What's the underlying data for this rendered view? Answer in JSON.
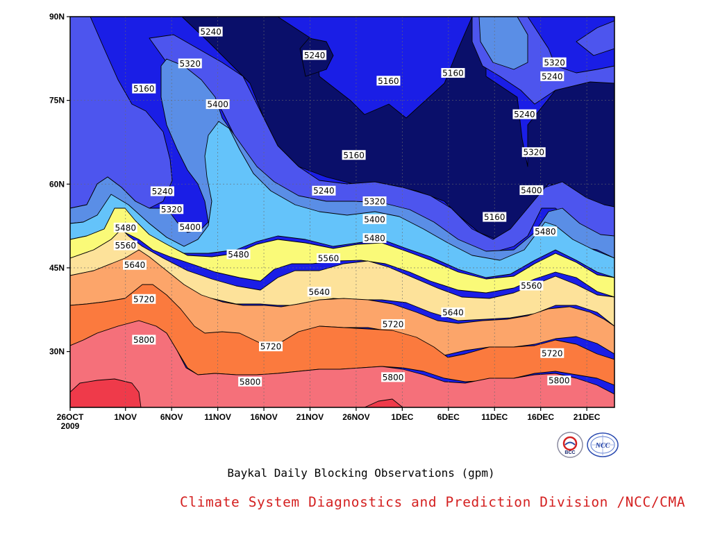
{
  "chart_data": {
    "type": "heatmap",
    "subtype": "filled-contour",
    "title": "",
    "xlabel": "",
    "ylabel": "",
    "caption": "Baykal Daily Blocking Observations (gpm)",
    "units": "gpm",
    "x_ticks": [
      "26OCT",
      "1NOV",
      "6NOV",
      "11NOV",
      "16NOV",
      "21NOV",
      "26NOV",
      "1DEC",
      "6DEC",
      "11DEC",
      "16DEC",
      "21DEC"
    ],
    "x_year_label": "2009",
    "y_ticks": [
      "30N",
      "45N",
      "60N",
      "75N",
      "90N"
    ],
    "y_range_deg": [
      20,
      90
    ],
    "x_range": [
      "26OCT2009",
      "24DEC2009"
    ],
    "contour_levels": [
      5160,
      5240,
      5320,
      5400,
      5480,
      5560,
      5640,
      5720,
      5800,
      5880
    ],
    "colors": {
      "below_5160": "#0a0f6a",
      "5160_5240": "#1a1ee6",
      "5240_5320": "#4d55ee",
      "5320_5400": "#5a8ee6",
      "5400_5480": "#64c3fa",
      "5480_5560": "#fafa78",
      "5560_5640": "#fde29a",
      "5640_5720": "#fca56a",
      "5720_5800": "#fb7a3e",
      "5800_5880": "#f5707a",
      "above_5880": "#ef3a4a"
    },
    "contour_lines": [
      {
        "level": 5800,
        "points": [
          [
            0,
            30.5
          ],
          [
            5,
            35
          ],
          [
            10,
            36.5
          ],
          [
            15,
            35
          ],
          [
            20,
            29.5
          ],
          [
            25,
            28
          ],
          [
            30,
            27
          ],
          [
            40,
            26
          ],
          [
            50,
            26
          ],
          [
            60,
            27
          ],
          [
            70,
            27.5
          ],
          [
            80,
            26
          ],
          [
            85,
            24.5
          ],
          [
            90,
            25.5
          ],
          [
            100,
            24
          ],
          [
            108,
            23
          ],
          [
            117,
            22
          ]
        ]
      },
      {
        "level": 5720,
        "points": [
          [
            0,
            38.5
          ],
          [
            5,
            39
          ],
          [
            10,
            42
          ],
          [
            15,
            41
          ],
          [
            20,
            36.5
          ],
          [
            25,
            33
          ],
          [
            30,
            32
          ],
          [
            35,
            31.5
          ],
          [
            40,
            30
          ],
          [
            45,
            32
          ],
          [
            50,
            34
          ],
          [
            55,
            33
          ],
          [
            60,
            34
          ],
          [
            65,
            34
          ],
          [
            70,
            31
          ],
          [
            75,
            30
          ],
          [
            80,
            29.5
          ],
          [
            85,
            31
          ],
          [
            90,
            30
          ],
          [
            95,
            30.5
          ],
          [
            100,
            29.5
          ],
          [
            105,
            30.5
          ],
          [
            110,
            29.5
          ],
          [
            117,
            26.5
          ]
        ]
      },
      {
        "level": 5640,
        "points": [
          [
            0,
            43.5
          ],
          [
            5,
            44
          ],
          [
            10,
            48.5
          ],
          [
            15,
            45
          ],
          [
            20,
            41
          ],
          [
            25,
            40
          ],
          [
            30,
            38.5
          ],
          [
            40,
            37.5
          ],
          [
            45,
            39
          ],
          [
            50,
            38.5
          ],
          [
            55,
            40.5
          ],
          [
            60,
            40.5
          ],
          [
            65,
            39.5
          ],
          [
            70,
            39.5
          ],
          [
            75,
            37.5
          ],
          [
            80,
            36.5
          ],
          [
            85,
            36
          ],
          [
            90,
            36.5
          ],
          [
            95,
            37
          ],
          [
            100,
            38
          ],
          [
            105,
            37.5
          ],
          [
            110,
            36.5
          ],
          [
            117,
            34.5
          ]
        ]
      },
      {
        "level": 5560,
        "points": [
          [
            0,
            47
          ],
          [
            5,
            48
          ],
          [
            10,
            53
          ],
          [
            15,
            49
          ],
          [
            20,
            46
          ],
          [
            25,
            44
          ],
          [
            30,
            43
          ],
          [
            35,
            41
          ],
          [
            40,
            44
          ],
          [
            45,
            45
          ],
          [
            50,
            44.5
          ],
          [
            55,
            46
          ],
          [
            60,
            47
          ],
          [
            65,
            45.5
          ],
          [
            70,
            44
          ],
          [
            75,
            42
          ],
          [
            80,
            40.5
          ],
          [
            85,
            40.5
          ],
          [
            90,
            40.5
          ],
          [
            95,
            42
          ],
          [
            100,
            43
          ],
          [
            105,
            44.5
          ],
          [
            110,
            41
          ],
          [
            117,
            38.5
          ]
        ]
      },
      {
        "level": 5480,
        "points": [
          [
            0,
            49.5
          ],
          [
            5,
            52
          ],
          [
            10,
            55.5
          ],
          [
            15,
            50
          ],
          [
            20,
            47
          ],
          [
            25,
            46
          ],
          [
            30,
            45
          ],
          [
            35,
            46
          ],
          [
            40,
            50
          ],
          [
            45,
            50
          ],
          [
            50,
            49
          ],
          [
            55,
            51
          ],
          [
            60,
            52
          ],
          [
            65,
            50
          ],
          [
            70,
            48
          ],
          [
            75,
            46.5
          ],
          [
            80,
            45
          ],
          [
            85,
            45
          ],
          [
            90,
            46
          ],
          [
            95,
            48
          ],
          [
            100,
            50
          ],
          [
            105,
            51
          ],
          [
            110,
            49
          ],
          [
            117,
            43
          ]
        ]
      }
    ],
    "contour_labels": [
      {
        "value": 5240,
        "x_day": 30.5,
        "lat": 87.2
      },
      {
        "value": 5320,
        "x_day": 26,
        "lat": 81.5
      },
      {
        "value": 5160,
        "x_day": 16,
        "lat": 77
      },
      {
        "value": 5400,
        "x_day": 32,
        "lat": 74.2
      },
      {
        "value": 5240,
        "x_day": 20,
        "lat": 58.6
      },
      {
        "value": 5320,
        "x_day": 22,
        "lat": 55.4
      },
      {
        "value": 5480,
        "x_day": 12,
        "lat": 52.1
      },
      {
        "value": 5560,
        "x_day": 12,
        "lat": 48.9
      },
      {
        "value": 5400,
        "x_day": 26,
        "lat": 52.2
      },
      {
        "value": 5640,
        "x_day": 14,
        "lat": 45.4
      },
      {
        "value": 5720,
        "x_day": 16,
        "lat": 39.3
      },
      {
        "value": 5800,
        "x_day": 16,
        "lat": 32.0
      },
      {
        "value": 5480,
        "x_day": 36.5,
        "lat": 47.3
      },
      {
        "value": 5720,
        "x_day": 43.5,
        "lat": 30.8
      },
      {
        "value": 5800,
        "x_day": 39,
        "lat": 24.5
      },
      {
        "value": 5240,
        "x_day": 53,
        "lat": 83
      },
      {
        "value": 5240,
        "x_day": 55,
        "lat": 58.7
      },
      {
        "value": 5560,
        "x_day": 56,
        "lat": 46.6
      },
      {
        "value": 5640,
        "x_day": 54,
        "lat": 40.6
      },
      {
        "value": 5160,
        "x_day": 61.5,
        "lat": 65.1
      },
      {
        "value": 5320,
        "x_day": 66,
        "lat": 56.8
      },
      {
        "value": 5400,
        "x_day": 66,
        "lat": 53.6
      },
      {
        "value": 5480,
        "x_day": 66,
        "lat": 50.2
      },
      {
        "value": 5160,
        "x_day": 69,
        "lat": 78.4
      },
      {
        "value": 5720,
        "x_day": 70,
        "lat": 34.8
      },
      {
        "value": 5800,
        "x_day": 70,
        "lat": 25.3
      },
      {
        "value": 5160,
        "x_day": 83,
        "lat": 79.8
      },
      {
        "value": 5640,
        "x_day": 83,
        "lat": 36.9
      },
      {
        "value": 5160,
        "x_day": 92,
        "lat": 54
      },
      {
        "value": 5320,
        "x_day": 105,
        "lat": 81.7
      },
      {
        "value": 5240,
        "x_day": 104.5,
        "lat": 79.2
      },
      {
        "value": 5560,
        "x_day": 100,
        "lat": 41.7
      },
      {
        "value": 5240,
        "x_day": 98.5,
        "lat": 72.4
      },
      {
        "value": 5320,
        "x_day": 100.5,
        "lat": 65.6
      },
      {
        "value": 5400,
        "x_day": 100,
        "lat": 58.8
      },
      {
        "value": 5480,
        "x_day": 103,
        "lat": 51.4
      },
      {
        "value": 5720,
        "x_day": 104.5,
        "lat": 29.6
      },
      {
        "value": 5800,
        "x_day": 106,
        "lat": 24.7
      }
    ]
  },
  "logos": {
    "left": {
      "text": "BCC",
      "name": "bcc-logo"
    },
    "right": {
      "text": "NCC",
      "name": "ncc-logo"
    }
  },
  "caption_text": "Baykal Daily Blocking Observations (gpm)",
  "division_text": "Climate System Diagnostics and Prediction Division /NCC/CMA"
}
